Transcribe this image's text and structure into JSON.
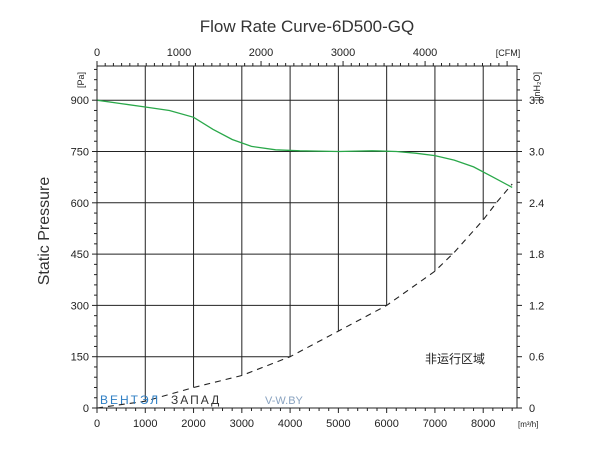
{
  "chart_data": {
    "type": "line",
    "title": "Flow Rate Curve-6D500-GQ",
    "ylabel": "Static  Pressure",
    "y_unit_left": "[Pa]",
    "y_unit_right": "[inH₂O]",
    "x_unit_bottom": "[m³/h]",
    "x_unit_top": "[CFM]",
    "xlim": [
      0,
      8700
    ],
    "ylim": [
      0,
      1000
    ],
    "grid": true,
    "x_ticks_bottom": [
      "0",
      "1000",
      "2000",
      "3000",
      "4000",
      "5000",
      "6000",
      "7000",
      "8000"
    ],
    "x_ticks_top": [
      "0",
      "1000",
      "2000",
      "3000",
      "4000"
    ],
    "y_ticks_left": [
      "0",
      "150",
      "300",
      "450",
      "600",
      "750",
      "900"
    ],
    "y_ticks_right": [
      "0",
      "0.6",
      "1.2",
      "1.8",
      "2.4",
      "3.0",
      "3.6"
    ],
    "series": [
      {
        "color": "#2aa84a",
        "style": "solid",
        "points": [
          [
            0,
            900
          ],
          [
            500,
            890
          ],
          [
            1000,
            880
          ],
          [
            1500,
            870
          ],
          [
            2000,
            850
          ],
          [
            2400,
            815
          ],
          [
            2800,
            785
          ],
          [
            3200,
            765
          ],
          [
            3700,
            755
          ],
          [
            4200,
            752
          ],
          [
            5000,
            750
          ],
          [
            5700,
            752
          ],
          [
            6200,
            750
          ],
          [
            6600,
            745
          ],
          [
            7000,
            738
          ],
          [
            7400,
            725
          ],
          [
            7800,
            705
          ],
          [
            8200,
            675
          ],
          [
            8600,
            645
          ]
        ]
      },
      {
        "color": "#222222",
        "style": "dashed",
        "points": [
          [
            0,
            0
          ],
          [
            1000,
            20
          ],
          [
            2000,
            60
          ],
          [
            3000,
            95
          ],
          [
            4000,
            150
          ],
          [
            5000,
            225
          ],
          [
            6000,
            300
          ],
          [
            7000,
            400
          ],
          [
            7400,
            455
          ],
          [
            8000,
            550
          ],
          [
            8300,
            605
          ],
          [
            8600,
            655
          ]
        ]
      }
    ],
    "annotation": "非运行区域",
    "watermark": {
      "part1": "ВЕНТЭЛ",
      "part2": "ЗАПАД",
      "url": "V-W.BY"
    }
  }
}
